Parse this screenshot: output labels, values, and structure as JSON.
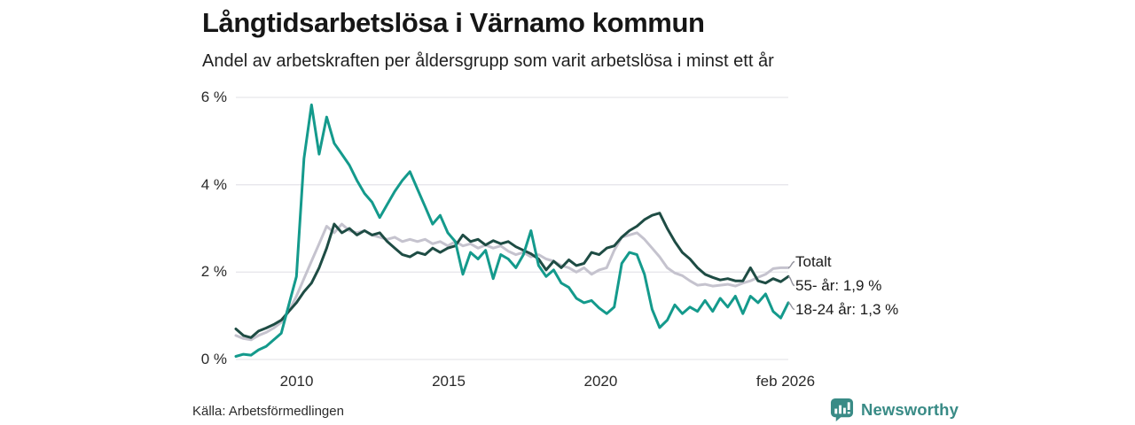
{
  "header": {
    "title": "Långtidsarbetslösa i Värnamo kommun",
    "subtitle": "Andel av arbetskraften per åldersgrupp som varit arbetslösa i minst ett år"
  },
  "footer": {
    "source": "Källa: Arbetsförmedlingen",
    "brand_name": "Newsworthy",
    "brand_color": "#398b86"
  },
  "chart_data": {
    "type": "line",
    "title": "Långtidsarbetslösa i Värnamo kommun",
    "subtitle": "Andel av arbetskraften per åldersgrupp som varit arbetslösa i minst ett år",
    "xlabel": "",
    "ylabel": "",
    "x_unit": "year (points quarterly from Jan 2008 to Feb 2026)",
    "x_domain": [
      2008.0,
      2026.17
    ],
    "ylim": [
      0,
      6
    ],
    "grid": "horizontal",
    "legend_position": "right-end",
    "grid_color": "#e7e6eb",
    "connector_color": "#90909a",
    "y_ticks": [
      {
        "value": 0,
        "label": "0 %"
      },
      {
        "value": 2,
        "label": "2 %"
      },
      {
        "value": 4,
        "label": "4 %"
      },
      {
        "value": 6,
        "label": "6 %"
      }
    ],
    "x_ticks": [
      {
        "value": 2010,
        "label": "2010"
      },
      {
        "value": 2015,
        "label": "2015"
      },
      {
        "value": 2020,
        "label": "2020"
      },
      {
        "value": 2026.083,
        "label": "feb 2026"
      }
    ],
    "series": [
      {
        "name": "Totalt",
        "legend_label": "Totalt",
        "color": "#c5c3ce",
        "end_value_pct": 2.1,
        "values": [
          0.55,
          0.48,
          0.45,
          0.55,
          0.62,
          0.72,
          0.85,
          1.1,
          1.45,
          1.85,
          2.25,
          2.65,
          3.05,
          2.9,
          3.1,
          2.95,
          2.9,
          2.95,
          2.85,
          2.8,
          2.75,
          2.8,
          2.7,
          2.75,
          2.7,
          2.75,
          2.65,
          2.7,
          2.6,
          2.7,
          2.6,
          2.65,
          2.55,
          2.62,
          2.55,
          2.6,
          2.48,
          2.4,
          2.45,
          2.35,
          2.4,
          2.3,
          2.25,
          2.15,
          2.1,
          2.0,
          2.1,
          1.95,
          2.05,
          2.1,
          2.5,
          2.8,
          2.85,
          2.9,
          2.75,
          2.55,
          2.35,
          2.1,
          1.98,
          1.92,
          1.8,
          1.7,
          1.72,
          1.68,
          1.7,
          1.72,
          1.68,
          1.75,
          1.8,
          1.88,
          1.95,
          2.08,
          2.1,
          2.1
        ]
      },
      {
        "name": "55- år",
        "legend_label": "55- år: 1,9 %",
        "color": "#1e4c44",
        "end_value_pct": 1.9,
        "values": [
          0.7,
          0.55,
          0.5,
          0.65,
          0.72,
          0.8,
          0.9,
          1.1,
          1.3,
          1.55,
          1.75,
          2.1,
          2.55,
          3.1,
          2.9,
          3.0,
          2.85,
          2.95,
          2.85,
          2.9,
          2.7,
          2.55,
          2.4,
          2.35,
          2.45,
          2.4,
          2.55,
          2.45,
          2.55,
          2.6,
          2.85,
          2.7,
          2.75,
          2.62,
          2.72,
          2.65,
          2.7,
          2.58,
          2.5,
          2.42,
          2.3,
          2.05,
          2.25,
          2.1,
          2.28,
          2.15,
          2.2,
          2.45,
          2.4,
          2.55,
          2.6,
          2.8,
          2.95,
          3.05,
          3.2,
          3.3,
          3.35,
          3.0,
          2.7,
          2.45,
          2.3,
          2.1,
          1.95,
          1.88,
          1.82,
          1.85,
          1.8,
          1.8,
          2.1,
          1.8,
          1.75,
          1.85,
          1.78,
          1.9
        ]
      },
      {
        "name": "18-24 år",
        "legend_label": "18-24 år: 1,3 %",
        "color": "#149a8c",
        "end_value_pct": 1.3,
        "values": [
          0.07,
          0.12,
          0.1,
          0.22,
          0.3,
          0.45,
          0.6,
          1.25,
          1.9,
          4.6,
          5.83,
          4.7,
          5.55,
          4.95,
          4.7,
          4.45,
          4.1,
          3.8,
          3.6,
          3.25,
          3.55,
          3.85,
          4.1,
          4.3,
          3.9,
          3.5,
          3.1,
          3.3,
          2.9,
          2.7,
          1.95,
          2.45,
          2.3,
          2.5,
          1.85,
          2.4,
          2.3,
          2.1,
          2.4,
          2.95,
          2.15,
          1.9,
          2.05,
          1.75,
          1.65,
          1.4,
          1.3,
          1.35,
          1.18,
          1.05,
          1.2,
          2.2,
          2.45,
          2.4,
          1.95,
          1.15,
          0.73,
          0.9,
          1.25,
          1.05,
          1.2,
          1.1,
          1.35,
          1.1,
          1.4,
          1.2,
          1.45,
          1.05,
          1.45,
          1.3,
          1.5,
          1.1,
          0.95,
          1.3
        ]
      }
    ]
  }
}
